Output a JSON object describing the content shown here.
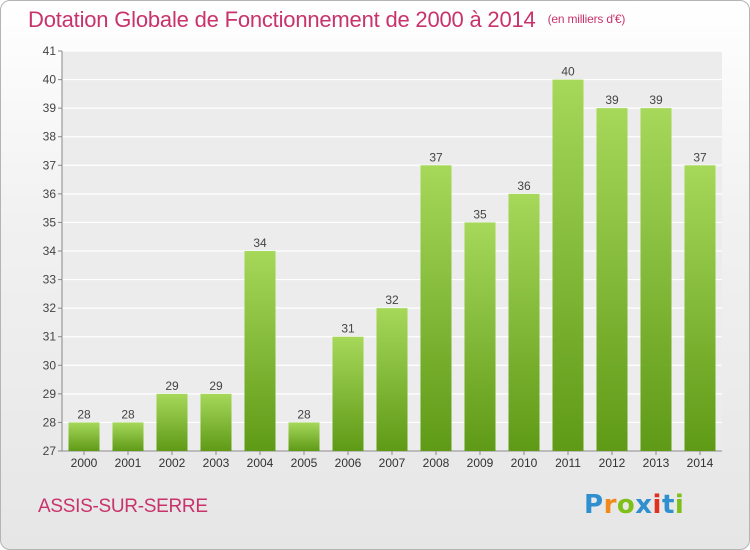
{
  "header": {
    "title": "Dotation Globale de Fonctionnement de 2000 à 2014",
    "unit": "(en milliers d'€)"
  },
  "footer": {
    "commune": "ASSIS-SUR-SERRE",
    "logo_text": "Proxiti"
  },
  "colors": {
    "title": "#c8336b",
    "bar_top": "#a6d85a",
    "bar_bottom": "#5f9a16",
    "logo": [
      "#2f8fcf",
      "#f08a1c",
      "#7fbf1a",
      "#2f8fcf",
      "#e0301e",
      "#2f8fcf",
      "#7fbf1a"
    ]
  },
  "chart_data": {
    "type": "bar",
    "title": "Dotation Globale de Fonctionnement de 2000 à 2014",
    "subtitle": "(en milliers d'€)",
    "xlabel": "",
    "ylabel": "",
    "categories": [
      "2000",
      "2001",
      "2002",
      "2003",
      "2004",
      "2005",
      "2006",
      "2007",
      "2008",
      "2009",
      "2010",
      "2011",
      "2012",
      "2013",
      "2014"
    ],
    "values": [
      28,
      28,
      29,
      29,
      34,
      28,
      31,
      32,
      37,
      35,
      36,
      40,
      39,
      39,
      37
    ],
    "ylim": [
      27,
      41
    ],
    "yticks": [
      27,
      28,
      29,
      30,
      31,
      32,
      33,
      34,
      35,
      36,
      37,
      38,
      39,
      40,
      41
    ],
    "grid": true
  }
}
